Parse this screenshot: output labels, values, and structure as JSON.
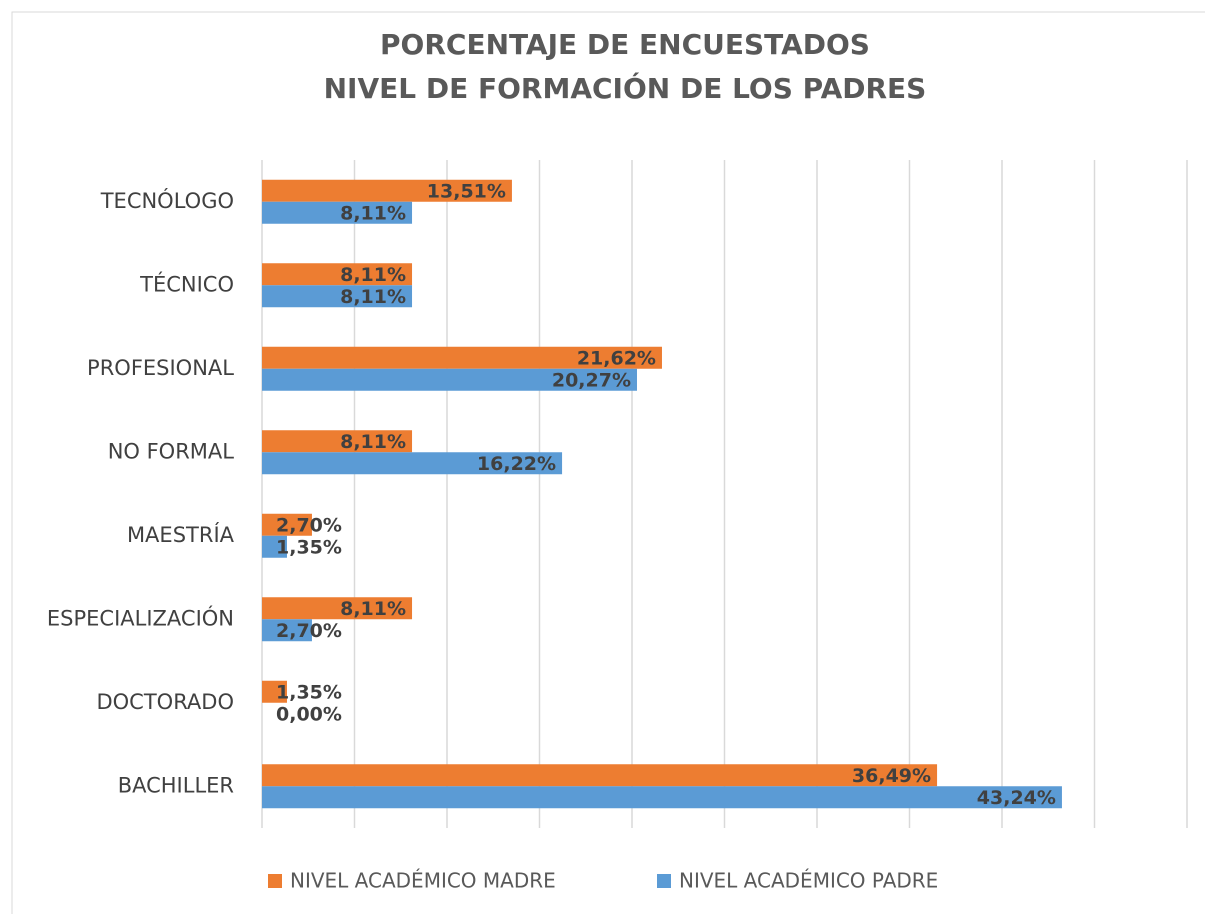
{
  "chart_data": {
    "type": "hbar",
    "title": "PORCENTAJE DE ENCUESTADOS",
    "subtitle": "NIVEL DE FORMACIÓN DE LOS PADRES",
    "categories": [
      "TECNÓLOGO",
      "TÉCNICO",
      "PROFESIONAL",
      "NO FORMAL",
      "MAESTRÍA",
      "ESPECIALIZACIÓN",
      "DOCTORADO",
      "BACHILLER"
    ],
    "series": [
      {
        "name": "NIVEL ACADÉMICO MADRE",
        "color": "#ed7d31",
        "values": [
          13.51,
          8.11,
          21.62,
          8.11,
          2.7,
          8.11,
          1.35,
          36.49
        ],
        "value_labels": [
          "13,51%",
          "8,11%",
          "21,62%",
          "8,11%",
          "2,70%",
          "8,11%",
          "1,35%",
          "36,49%"
        ]
      },
      {
        "name": "NIVEL ACADÉMICO PADRE",
        "color": "#5b9bd5",
        "values": [
          8.11,
          8.11,
          20.27,
          16.22,
          1.35,
          2.7,
          0.0,
          43.24
        ],
        "value_labels": [
          "8,11%",
          "8,11%",
          "20,27%",
          "16,22%",
          "1,35%",
          "2,70%",
          "0,00%",
          "43,24%"
        ]
      }
    ],
    "xlim": [
      0,
      50
    ],
    "xticks": [
      0,
      5,
      10,
      15,
      20,
      25,
      30,
      35,
      40,
      45,
      50
    ],
    "grid": true,
    "legend": "bottom"
  }
}
